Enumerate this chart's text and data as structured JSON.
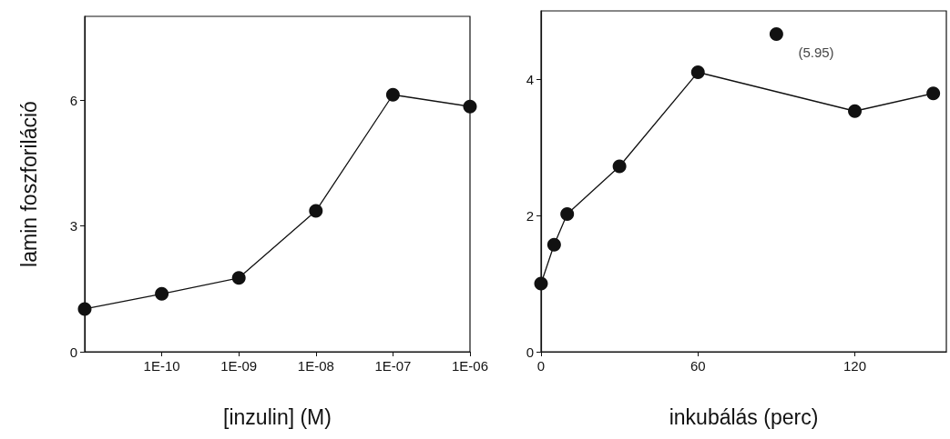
{
  "chart_data": [
    {
      "type": "line",
      "xlabel": "[inzulin] (M)",
      "ylabel": "lamin foszforiláció",
      "categories": [
        null,
        "1E-10",
        "1E-09",
        "1E-08",
        "1E-07",
        "1E-06"
      ],
      "series": [
        {
          "color": "#111111",
          "values": [
            1.02,
            1.38,
            1.76,
            3.36,
            6.13,
            5.85
          ]
        }
      ],
      "ylim": [
        0,
        8
      ],
      "yticks": [
        0,
        3,
        6
      ],
      "marker": "circle",
      "grid": false
    },
    {
      "type": "line",
      "xlabel": "inkubálás (perc)",
      "x": [
        0,
        5,
        10,
        30,
        60,
        120,
        150
      ],
      "series": [
        {
          "color": "#111111",
          "values": [
            1.0,
            1.57,
            2.02,
            2.72,
            4.1,
            3.53,
            3.79
          ]
        },
        {
          "type": "scatter",
          "color": "#111111",
          "x": [
            90
          ],
          "values": [
            4.66
          ]
        }
      ],
      "annotations": [
        {
          "text": "(5.95)",
          "x": 90,
          "y": 4.66
        }
      ],
      "xlim": [
        0,
        155
      ],
      "xticks": [
        0,
        60,
        120
      ],
      "ylim": [
        0,
        5
      ],
      "yticks": [
        0,
        2,
        4
      ],
      "marker": "circle",
      "grid": false
    }
  ]
}
